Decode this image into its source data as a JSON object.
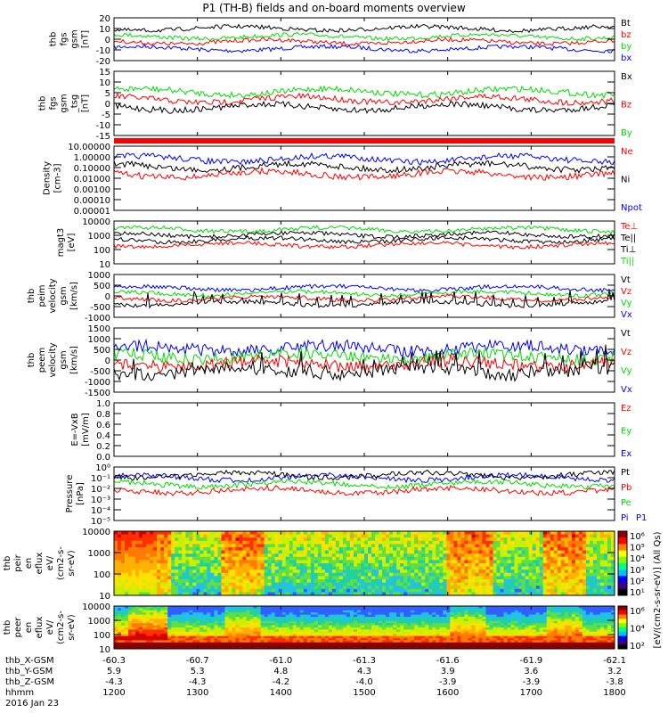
{
  "title": "P1 (TH-B) fields and on-board moments overview",
  "chart_data": {
    "type": "line",
    "title": "P1 (TH-B) fields and on-board moments overview",
    "xlabel": "hhmm",
    "date": "2016 Jan 23",
    "x_ticks": [
      "1200",
      "1300",
      "1400",
      "1500",
      "1600",
      "1700",
      "1800"
    ],
    "xlim": [
      "1200",
      "1800"
    ],
    "orbit_rows": [
      {
        "label": "thb_X-GSM",
        "values": [
          "-60.3",
          "-60.7",
          "-61.0",
          "-61.3",
          "-61.6",
          "-61.9",
          "-62.1"
        ]
      },
      {
        "label": "thb_Y-GSM",
        "values": [
          "5.9",
          "5.3",
          "4.8",
          "4.3",
          "3.9",
          "3.6",
          "3.2"
        ]
      },
      {
        "label": "thb_Z-GSM",
        "values": [
          "-4.3",
          "-4.3",
          "-4.2",
          "-4.0",
          "-3.9",
          "-3.9",
          "-3.8"
        ]
      },
      {
        "label": "hhmm",
        "values": [
          "1200",
          "1300",
          "1400",
          "1500",
          "1600",
          "1700",
          "1800"
        ]
      }
    ],
    "panels": [
      {
        "kind": "line",
        "ylabel": [
          "thb",
          "fgs",
          "gsm",
          "[nT]"
        ],
        "yticks": [
          "20",
          "10",
          "0",
          "-10",
          "-20"
        ],
        "ylim": [
          -20,
          20
        ],
        "legend": [
          {
            "label": "Bt",
            "color": "#000000"
          },
          {
            "label": "bz",
            "color": "#ff0000"
          },
          {
            "label": "by",
            "color": "#00dd00"
          },
          {
            "label": "bx",
            "color": "#0000ff"
          }
        ]
      },
      {
        "kind": "line",
        "ylabel": [
          "thb",
          "fgs",
          "gsm",
          "_tsg",
          "[nT]"
        ],
        "yticks": [
          "15",
          "10",
          "5",
          "0",
          "-5",
          "-10",
          "-15"
        ],
        "ylim": [
          -18,
          15
        ],
        "legend": [
          {
            "label": "Bx",
            "color": "#000000"
          },
          {
            "label": "Bz",
            "color": "#ff0000"
          },
          {
            "label": "By",
            "color": "#00dd00"
          }
        ]
      },
      {
        "kind": "log",
        "ylabel": [
          "Density",
          "[cm-3]"
        ],
        "yticks": [
          "10.00000",
          "1.00000",
          "0.10000",
          "0.01000",
          "0.00100",
          "0.00010",
          "0.00001"
        ],
        "ylim": [
          1e-05,
          10
        ],
        "legend": [
          {
            "label": "Ne",
            "color": "#ff0000"
          },
          {
            "label": "Ni",
            "color": "#000000"
          },
          {
            "label": "Npot",
            "color": "#0000ff"
          }
        ]
      },
      {
        "kind": "log",
        "ylabel": [
          "magt3",
          "[eV]"
        ],
        "yticks": [
          "10000",
          "1000",
          "100",
          "10"
        ],
        "ylim": [
          10,
          10000
        ],
        "legend": [
          {
            "label": "Te⊥",
            "color": "#ff0000"
          },
          {
            "label": "Te||",
            "color": "#000000"
          },
          {
            "label": "Ti⊥",
            "color": "#000000"
          },
          {
            "label": "Ti||",
            "color": "#00dd00"
          }
        ]
      },
      {
        "kind": "line",
        "ylabel": [
          "thb",
          "peim",
          "velocity",
          "gsm",
          "[km/s]"
        ],
        "yticks": [
          "1000",
          "500",
          "0",
          "-500",
          "-1000"
        ],
        "ylim": [
          -1000,
          1000
        ],
        "legend": [
          {
            "label": "Vt",
            "color": "#000000"
          },
          {
            "label": "Vz",
            "color": "#ff0000"
          },
          {
            "label": "Vy",
            "color": "#00dd00"
          },
          {
            "label": "Vx",
            "color": "#0000ff"
          }
        ]
      },
      {
        "kind": "line",
        "ylabel": [
          "thb",
          "peem",
          "velocity",
          "gsm",
          "[km/s]"
        ],
        "yticks": [
          "1500",
          "1000",
          "500",
          "0",
          "-500",
          "-1000",
          "-1500"
        ],
        "ylim": [
          -1500,
          1500
        ],
        "legend": [
          {
            "label": "Vt",
            "color": "#000000"
          },
          {
            "label": "Vz",
            "color": "#ff0000"
          },
          {
            "label": "Vy",
            "color": "#00dd00"
          },
          {
            "label": "Vx",
            "color": "#0000ff"
          }
        ]
      },
      {
        "kind": "empty",
        "ylabel": [
          "E=-VxB",
          "[mV/m]"
        ],
        "yticks": [
          "1.0",
          "0.8",
          "0.6",
          "0.4",
          "0.2",
          "0.0"
        ],
        "ylim": [
          0,
          1
        ],
        "legend": [
          {
            "label": "Ez",
            "color": "#ff0000"
          },
          {
            "label": "Ey",
            "color": "#00dd00"
          },
          {
            "label": "Ex",
            "color": "#0000ff"
          }
        ]
      },
      {
        "kind": "log",
        "ylabel": [
          "Pressure",
          "[nPa]"
        ],
        "yticks": [
          "10⁰",
          "10⁻¹",
          "10⁻²",
          "10⁻³",
          "10⁻⁴",
          "10⁻⁵"
        ],
        "ylim": [
          1e-05,
          1
        ],
        "legend": [
          {
            "label": "Pt",
            "color": "#000000"
          },
          {
            "label": "Pb",
            "color": "#ff0000"
          },
          {
            "label": "Pe",
            "color": "#00dd00"
          },
          {
            "label": "Pi",
            "color": "#0000ff"
          }
        ]
      },
      {
        "kind": "spec",
        "ylabel": [
          "thb",
          "peir",
          "en",
          "eflux",
          "eV/",
          "(cm2-s-",
          "sr-eV)"
        ],
        "yticks": [
          "10000",
          "1000",
          "100",
          "10"
        ],
        "ylim": [
          5,
          30000
        ],
        "colorbar_ticks": [
          "10⁶",
          "10⁵",
          "10⁴",
          "10³",
          "10²",
          "10¹"
        ],
        "legend": []
      },
      {
        "kind": "spec",
        "ylabel": [
          "thb",
          "peer",
          "en",
          "eflux",
          "eV/",
          "(cm2-s-",
          "sr-eV)"
        ],
        "yticks": [
          "10000",
          "1000",
          "100",
          "10"
        ],
        "ylim": [
          5,
          30000
        ],
        "colorbar_ticks": [
          "10⁶",
          "10⁴",
          "10²"
        ],
        "legend": []
      }
    ],
    "colorbar_label": "[eV/(cm2-s-sr-eV)] (All Qs)",
    "colorbar_label_overlap": "[eV/(cm2-s-sr-eV)] (All Qs)",
    "top_strip_label": "P1"
  },
  "colors": {
    "red": "#ff0000",
    "green": "#00dd00",
    "blue": "#0000ff",
    "black": "#000000"
  }
}
